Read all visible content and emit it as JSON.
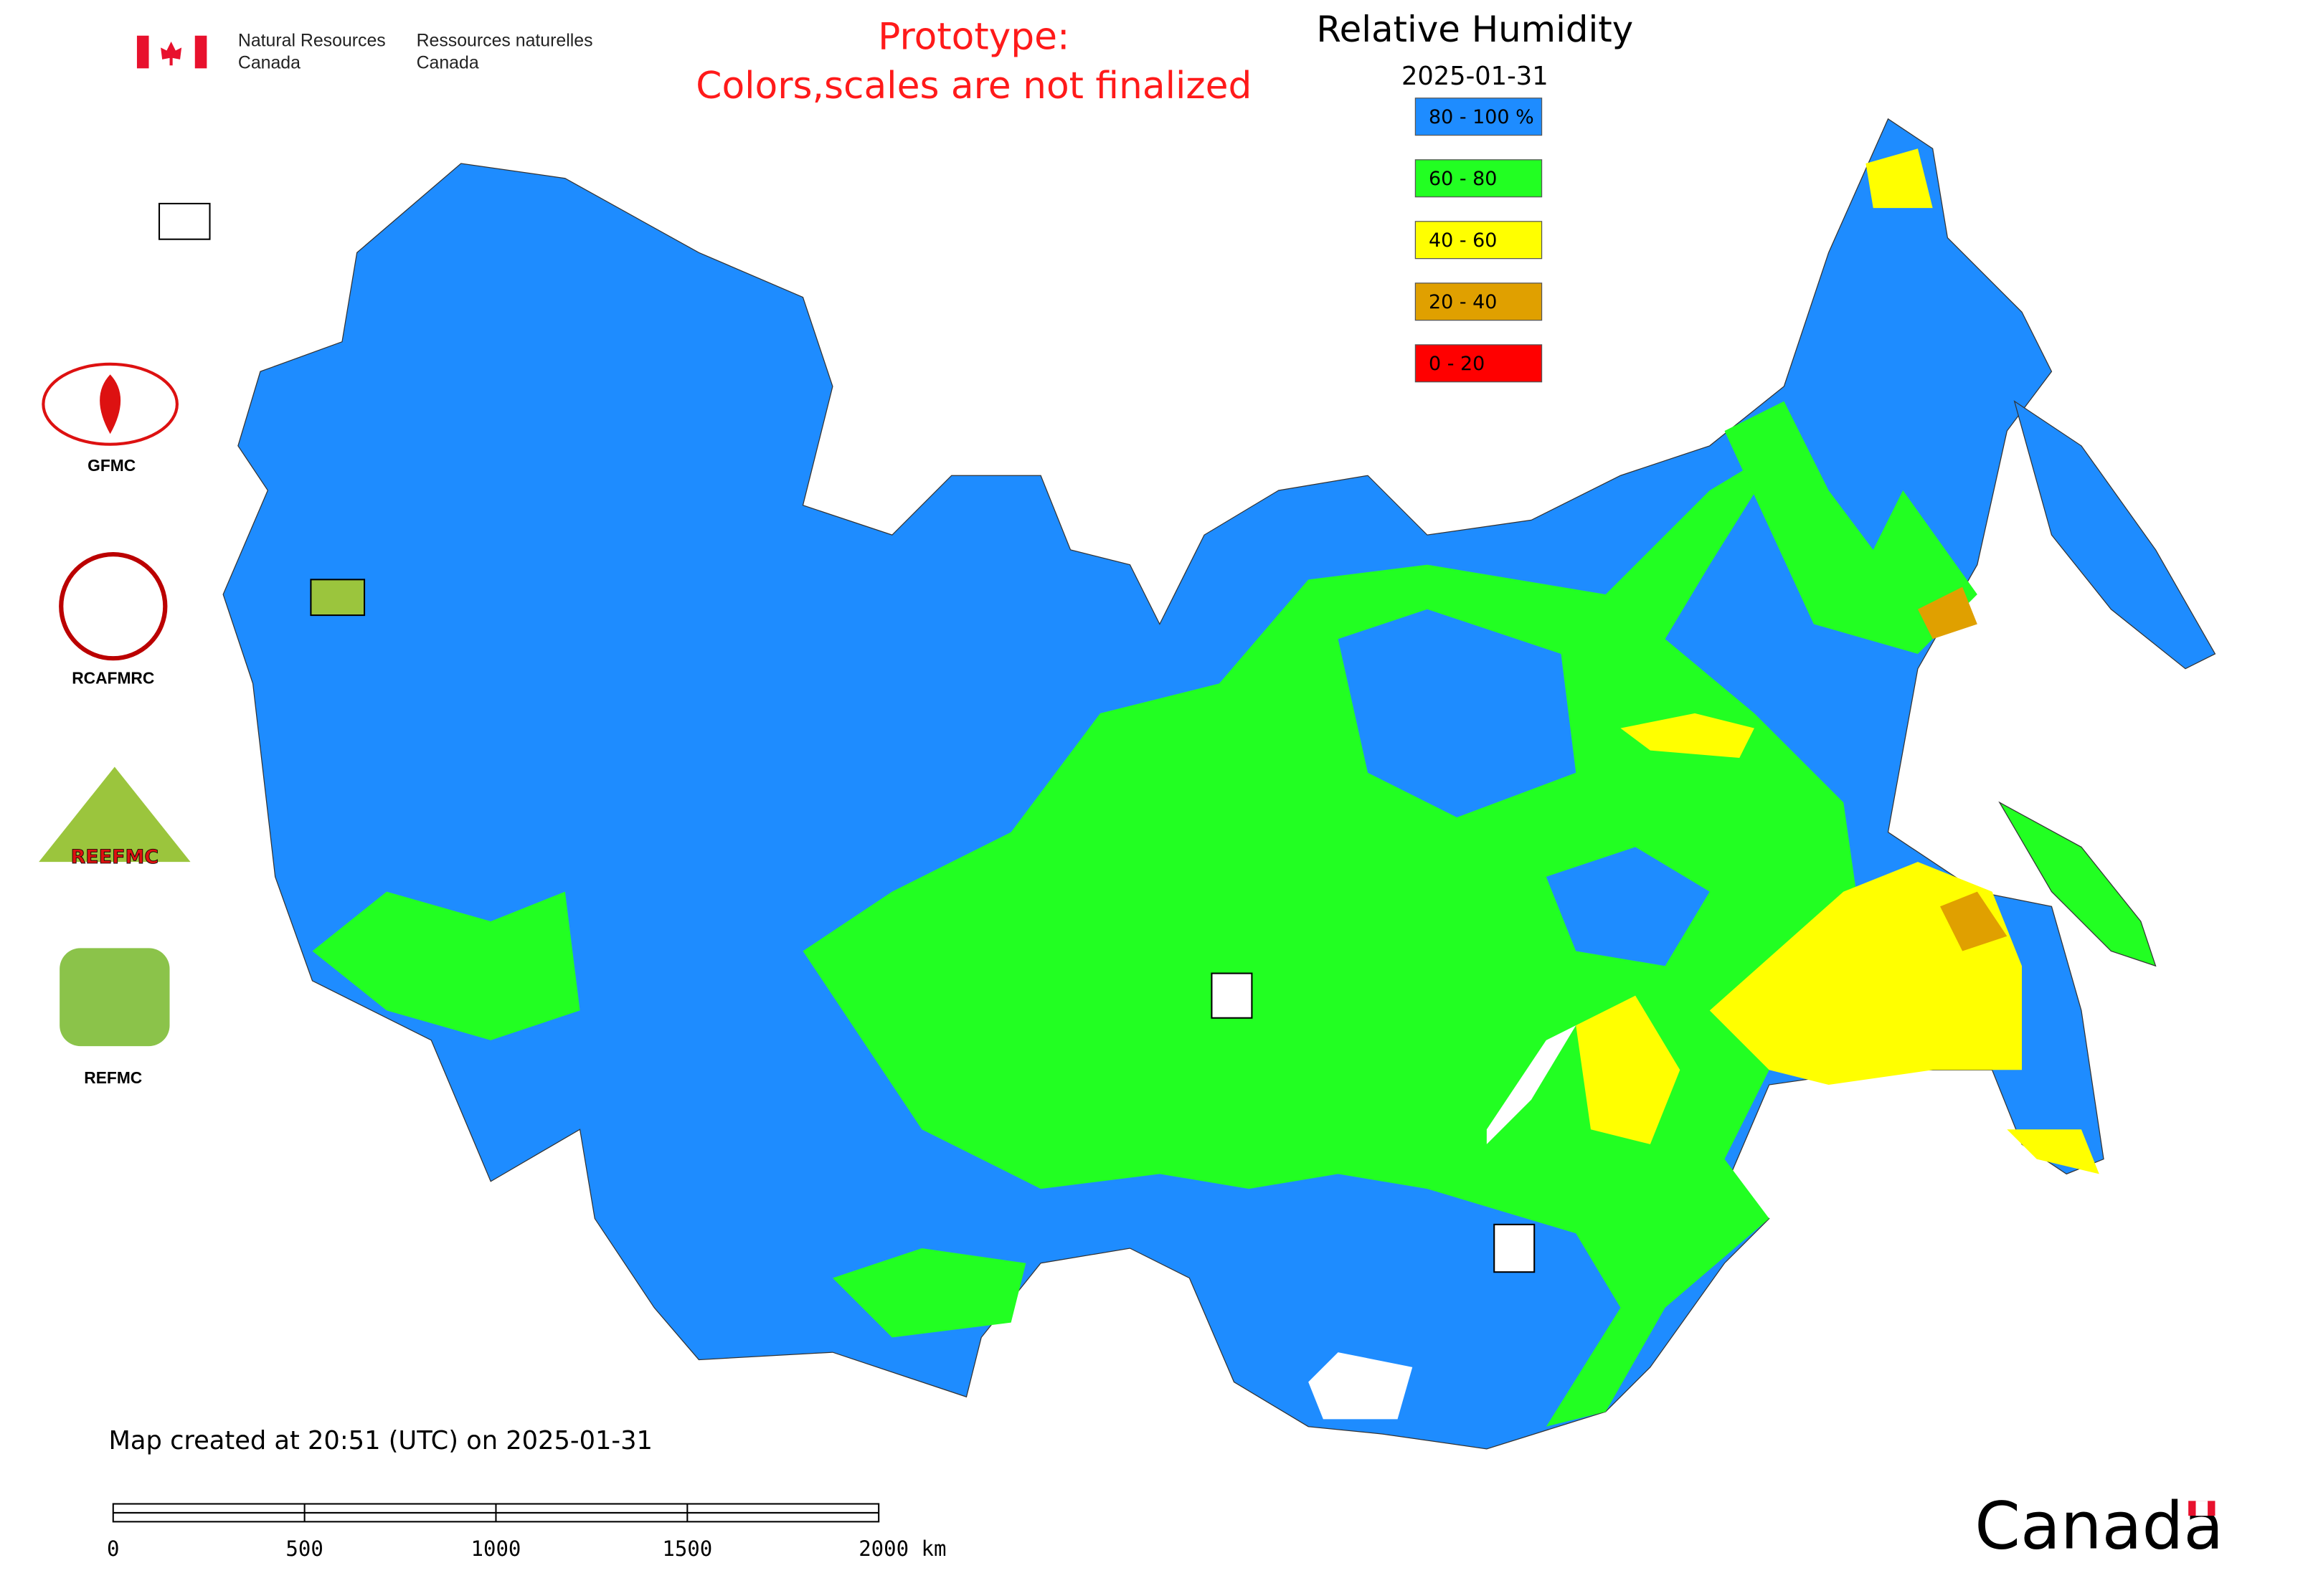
{
  "header": {
    "agency_en": [
      "Natural Resources",
      "Canada"
    ],
    "agency_fr": [
      "Ressources naturelles",
      "Canada"
    ],
    "notice": [
      "Prototype:",
      "Colors,scales are not finalized"
    ]
  },
  "legend": {
    "title": "Relative Humidity",
    "date": "2025-01-31",
    "items": [
      {
        "label": "80 - 100 %",
        "color": "#1e8cff"
      },
      {
        "label": "60 - 80",
        "color": "#22ff22"
      },
      {
        "label": "40 - 60",
        "color": "#ffff00"
      },
      {
        "label": "20 - 40",
        "color": "#e0a000"
      },
      {
        "label": "0 - 20",
        "color": "#ff0000"
      }
    ]
  },
  "logos": [
    "GFMC",
    "RCAFMRC",
    "REEFMC",
    "REFMC"
  ],
  "footer": {
    "created": "Map created at 20:51 (UTC) on 2025-01-31",
    "scale_labels": [
      "0",
      "500",
      "1000",
      "1500",
      "2000 km"
    ],
    "wordmark": "Canada"
  }
}
